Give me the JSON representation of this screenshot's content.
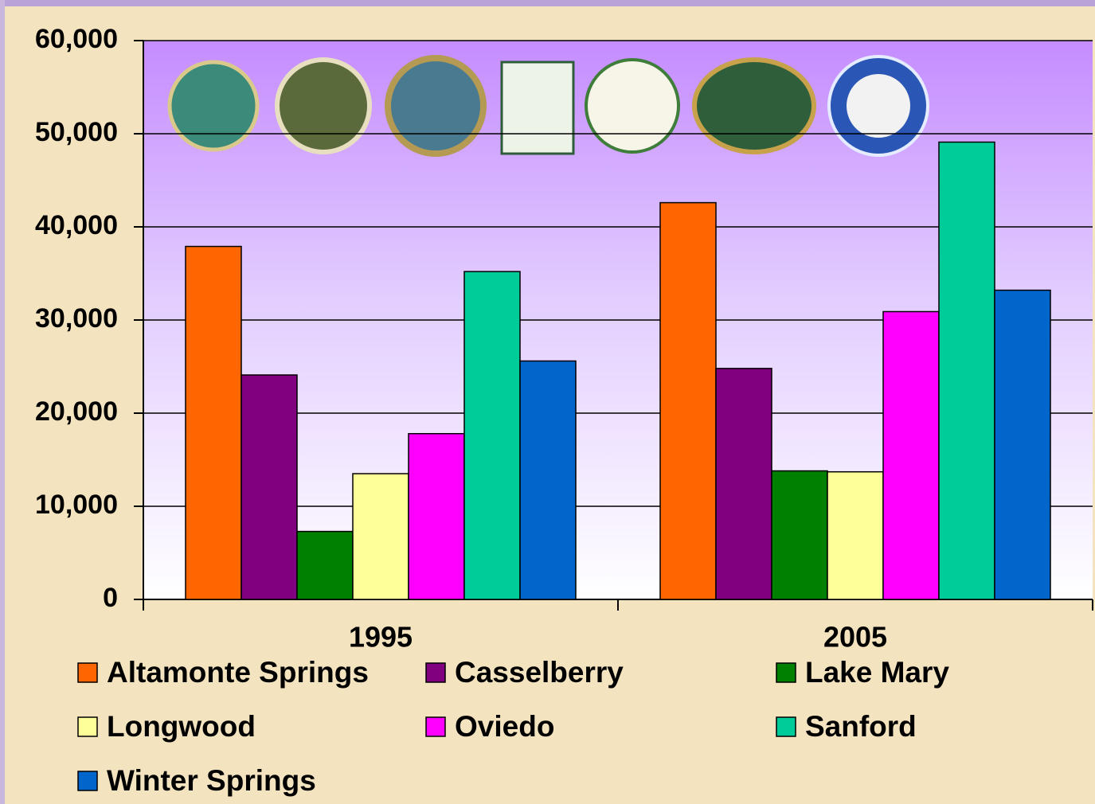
{
  "chart_data": {
    "type": "bar",
    "categories": [
      "1995",
      "2005"
    ],
    "series": [
      {
        "name": "Altamonte Springs",
        "color": "#ff6600",
        "values": [
          37900,
          42600
        ]
      },
      {
        "name": "Casselberry",
        "color": "#800080",
        "values": [
          24100,
          24800
        ]
      },
      {
        "name": "Lake Mary",
        "color": "#008000",
        "values": [
          7300,
          13800
        ]
      },
      {
        "name": "Longwood",
        "color": "#ffff99",
        "values": [
          13500,
          13700
        ]
      },
      {
        "name": "Oviedo",
        "color": "#ff00ff",
        "values": [
          17800,
          30900
        ]
      },
      {
        "name": "Sanford",
        "color": "#00cc99",
        "values": [
          35200,
          49100
        ]
      },
      {
        "name": "Winter Springs",
        "color": "#0066cc",
        "values": [
          25600,
          33200
        ]
      }
    ],
    "ylim": [
      0,
      60000
    ],
    "yticks": [
      0,
      {
        "value": 10000,
        "label": "10,000"
      },
      {
        "value": 20000,
        "label": "20,000"
      },
      {
        "value": 30000,
        "label": "30,000"
      },
      {
        "value": 40000,
        "label": "40,000"
      },
      {
        "value": 50000,
        "label": "50,000"
      },
      {
        "value": 60000,
        "label": "60,000"
      }
    ],
    "grid": true,
    "legend": "bottom"
  }
}
